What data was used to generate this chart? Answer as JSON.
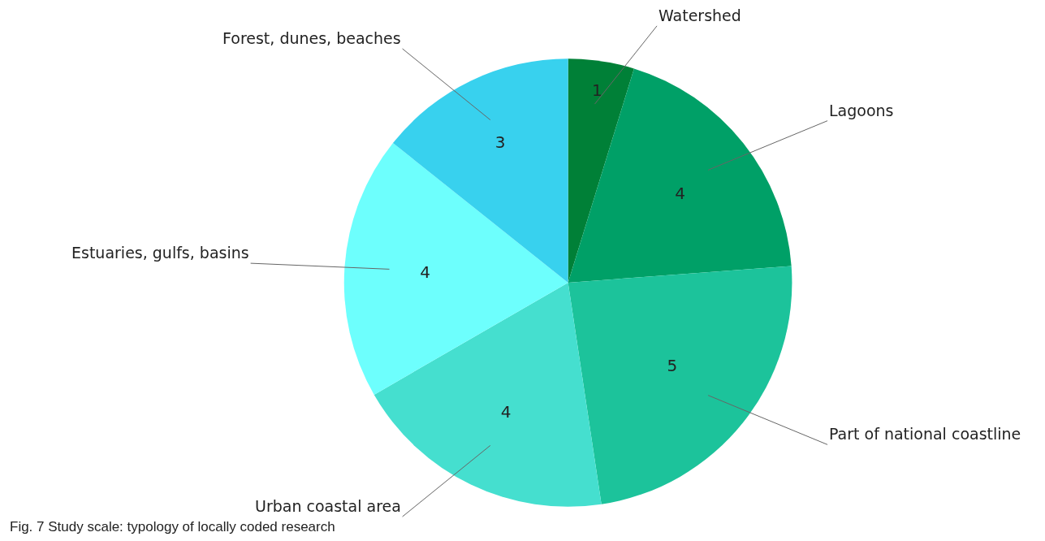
{
  "chart_data": {
    "type": "pie",
    "categories": [
      "Watershed",
      "Lagoons",
      "Part of national coastline",
      "Urban coastal area",
      "Estuaries, gulfs, basins",
      "Forest, dunes, beaches"
    ],
    "values": [
      1,
      4,
      5,
      4,
      4,
      3
    ],
    "colors": [
      "#008037",
      "#00a067",
      "#1cc39b",
      "#45dfcf",
      "#6dfffd",
      "#38d1ee"
    ],
    "data_labels": true,
    "legend": false,
    "annotations": [
      "Fig. 7 Study scale: typology of locally coded research"
    ]
  }
}
